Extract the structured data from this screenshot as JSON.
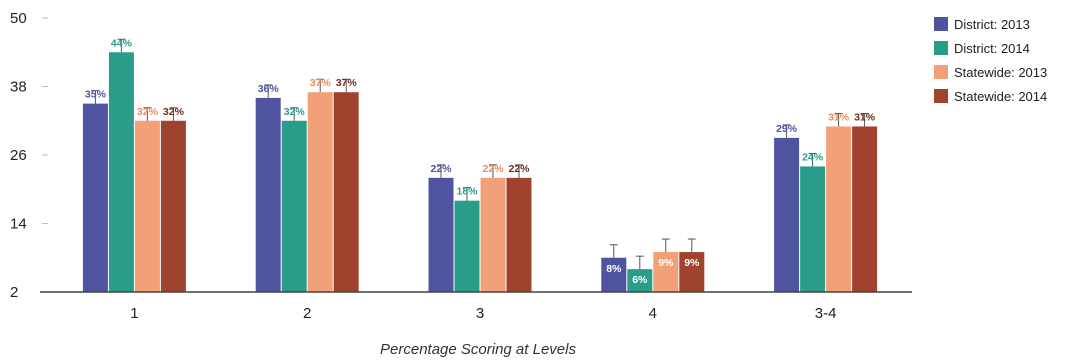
{
  "chart_data": {
    "type": "bar",
    "title": "",
    "xlabel": "Percentage Scoring at Levels",
    "ylabel": "",
    "ylim": [
      2,
      50
    ],
    "yticks": [
      2,
      14,
      26,
      38,
      50
    ],
    "categories": [
      "1",
      "2",
      "3",
      "4",
      "3-4"
    ],
    "legend_position": "top-right",
    "grid": false,
    "series": [
      {
        "name": "District: 2013",
        "color": "#4f53a0",
        "label_color": "#4f53a0",
        "values": [
          35,
          36,
          22,
          8,
          29
        ],
        "labels": [
          "35%",
          "36%",
          "22%",
          "8%",
          "29%"
        ]
      },
      {
        "name": "District: 2014",
        "color": "#2a9d8a",
        "label_color": "#2a9d8a",
        "values": [
          44,
          32,
          18,
          6,
          24
        ],
        "labels": [
          "44%",
          "32%",
          "18%",
          "6%",
          "24%"
        ]
      },
      {
        "name": "Statewide: 2013",
        "color": "#f2a078",
        "label_color": "#f08a5a",
        "values": [
          32,
          37,
          22,
          9,
          31
        ],
        "labels": [
          "32%",
          "37%",
          "22%",
          "9%",
          "31%"
        ]
      },
      {
        "name": "Statewide: 2014",
        "color": "#a0432e",
        "label_color": "#6e2e22",
        "values": [
          32,
          37,
          22,
          9,
          31
        ],
        "labels": [
          "32%",
          "37%",
          "22%",
          "9%",
          "31%"
        ]
      }
    ]
  }
}
